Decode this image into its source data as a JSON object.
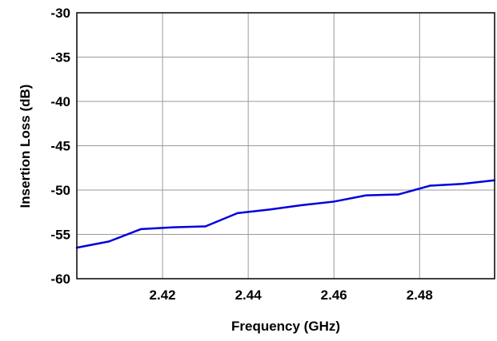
{
  "chart_data": {
    "type": "line",
    "title": "",
    "xlabel": "Frequency (GHz)",
    "ylabel": "Insertion Loss  (dB)",
    "xlim": [
      2.4,
      2.4975
    ],
    "ylim": [
      -60,
      -30
    ],
    "grid": true,
    "legend": "none",
    "x_ticks": [
      2.42,
      2.44,
      2.46,
      2.48
    ],
    "x_tick_labels": [
      "2.42",
      "2.44",
      "2.46",
      "2.48"
    ],
    "y_ticks": [
      -30,
      -35,
      -40,
      -45,
      -50,
      -55,
      -60
    ],
    "y_tick_labels": [
      "-30",
      "-35",
      "-40",
      "-45",
      "-50",
      "-55",
      "-60"
    ],
    "series": [
      {
        "color": "#0000dd",
        "x": [
          2.4,
          2.4075,
          2.415,
          2.4225,
          2.43,
          2.4375,
          2.445,
          2.4525,
          2.46,
          2.4675,
          2.475,
          2.4825,
          2.49,
          2.4975
        ],
        "y": [
          -56.5,
          -55.8,
          -54.4,
          -54.2,
          -54.1,
          -52.6,
          -52.2,
          -51.7,
          -51.3,
          -50.6,
          -50.5,
          -49.5,
          -49.3,
          -48.9
        ]
      }
    ],
    "colors": {
      "grid": "#9a9a9a",
      "frame": "#000000",
      "text": "#000000"
    }
  }
}
